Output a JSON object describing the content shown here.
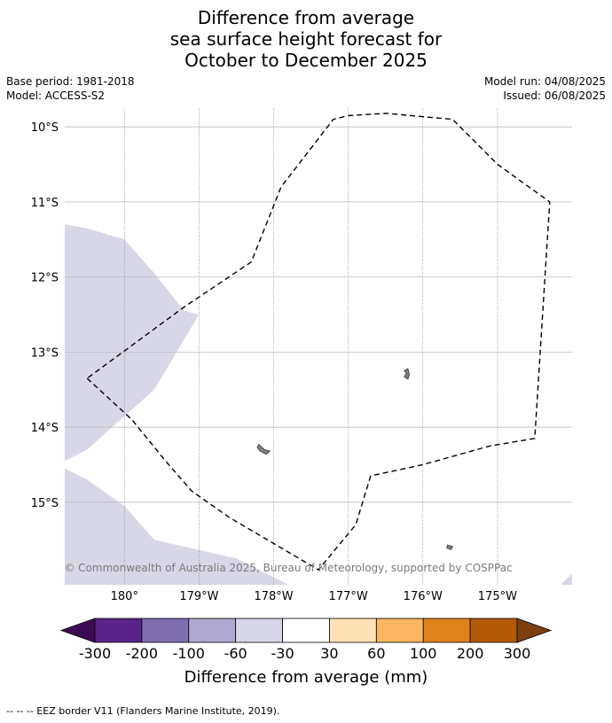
{
  "title": {
    "line1": "Difference from average",
    "line2": "sea surface height forecast for",
    "line3": "October to December 2025"
  },
  "meta": {
    "base_period": "Base period: 1981-2018",
    "model": "Model: ACCESS-S2",
    "model_run": "Model run: 04/08/2025",
    "issued": "Issued: 06/08/2025"
  },
  "map": {
    "lon_range": [
      -180.8,
      -174.0
    ],
    "lat_range": [
      -16.1,
      -9.75
    ],
    "grid": true,
    "lat_ticks": [
      {
        "value": -10,
        "label": "10°S"
      },
      {
        "value": -11,
        "label": "11°S"
      },
      {
        "value": -12,
        "label": "12°S"
      },
      {
        "value": -13,
        "label": "13°S"
      },
      {
        "value": -14,
        "label": "14°S"
      },
      {
        "value": -15,
        "label": "15°S"
      }
    ],
    "lon_ticks": [
      {
        "value": -180,
        "label": "180°"
      },
      {
        "value": -179,
        "label": "179°W"
      },
      {
        "value": -178,
        "label": "178°W"
      },
      {
        "value": -177,
        "label": "177°W"
      },
      {
        "value": -176,
        "label": "176°W"
      },
      {
        "value": -175,
        "label": "175°W"
      }
    ],
    "anomaly_color": "#d7d7e8",
    "land_color": "#808080",
    "eez_border": [
      [
        -180.5,
        -13.35
      ],
      [
        -179.9,
        -13.9
      ],
      [
        -179.45,
        -14.45
      ],
      [
        -179.1,
        -14.85
      ],
      [
        -178.6,
        -15.2
      ],
      [
        -178.0,
        -15.55
      ],
      [
        -177.4,
        -15.9
      ],
      [
        -176.9,
        -15.3
      ],
      [
        -176.7,
        -14.65
      ],
      [
        -176.0,
        -14.5
      ],
      [
        -175.1,
        -14.25
      ],
      [
        -174.5,
        -14.15
      ],
      [
        -174.3,
        -11.0
      ],
      [
        -175.0,
        -10.5
      ],
      [
        -175.6,
        -9.9
      ],
      [
        -176.5,
        -9.82
      ],
      [
        -177.0,
        -9.85
      ],
      [
        -177.2,
        -9.9
      ],
      [
        -177.9,
        -10.8
      ],
      [
        -178.3,
        -11.8
      ],
      [
        -179.2,
        -12.4
      ],
      [
        -180.5,
        -13.35
      ]
    ],
    "anomaly_regions": [
      [
        [
          -180.8,
          -11.3
        ],
        [
          -180.5,
          -11.35
        ],
        [
          -180.0,
          -11.5
        ],
        [
          -179.6,
          -11.95
        ],
        [
          -179.2,
          -12.45
        ],
        [
          -179.0,
          -12.5
        ],
        [
          -179.6,
          -13.5
        ],
        [
          -180.5,
          -14.3
        ],
        [
          -180.8,
          -14.45
        ]
      ],
      [
        [
          -180.8,
          -14.55
        ],
        [
          -180.5,
          -14.7
        ],
        [
          -180.0,
          -15.05
        ],
        [
          -179.6,
          -15.5
        ],
        [
          -178.5,
          -15.75
        ],
        [
          -177.8,
          -16.1
        ],
        [
          -180.8,
          -16.1
        ]
      ],
      [
        [
          -174.15,
          -16.1
        ],
        [
          -174.0,
          -15.95
        ],
        [
          -174.0,
          -16.1
        ]
      ]
    ],
    "islands": [
      [
        [
          -176.25,
          -13.25
        ],
        [
          -176.2,
          -13.22
        ],
        [
          -176.18,
          -13.3
        ],
        [
          -176.2,
          -13.36
        ],
        [
          -176.25,
          -13.33
        ],
        [
          -176.22,
          -13.28
        ]
      ],
      [
        [
          -178.2,
          -14.23
        ],
        [
          -178.12,
          -14.3
        ],
        [
          -178.05,
          -14.32
        ],
        [
          -178.1,
          -14.36
        ],
        [
          -178.18,
          -14.32
        ],
        [
          -178.22,
          -14.27
        ]
      ],
      [
        [
          -175.67,
          -15.57
        ],
        [
          -175.6,
          -15.59
        ],
        [
          -175.62,
          -15.63
        ],
        [
          -175.68,
          -15.61
        ]
      ]
    ]
  },
  "copyright": "© Commonwealth of Australia 2025, Bureau of Meteorology, supported by COSPPac",
  "colorbar": {
    "title": "Difference from average (mm)",
    "labels": [
      "-300",
      "-200",
      "-100",
      "-60",
      "-30",
      "30",
      "60",
      "100",
      "200",
      "300"
    ],
    "colors": [
      "#5a2387",
      "#7f6faf",
      "#afa8d1",
      "#d7d7e8",
      "#ffffff",
      "#fee0b5",
      "#fbb662",
      "#e0811a",
      "#b35a07"
    ],
    "under_color": "#3d0b54",
    "over_color": "#7d3f0f"
  },
  "footer": "--  --  -- EEZ border V11 (Flanders Marine Institute, 2019)."
}
